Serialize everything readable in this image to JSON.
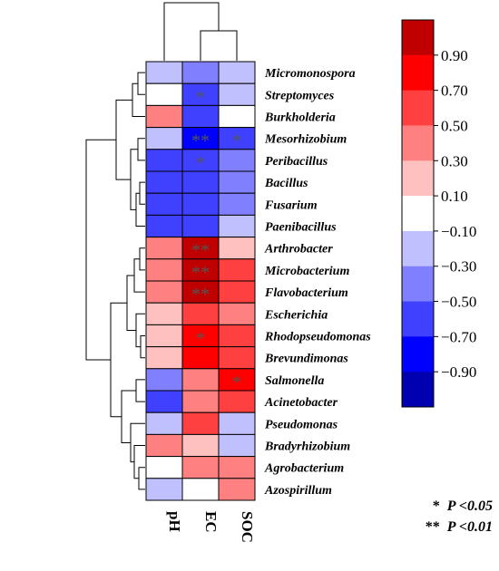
{
  "chart_data": {
    "type": "heatmap",
    "title": "",
    "columns": [
      "pH",
      "EC",
      "SOC"
    ],
    "rows": [
      "Micromonospora",
      "Streptomyces",
      "Burkholderia",
      "Mesorhizobium",
      "Peribacillus",
      "Bacillus",
      "Fusarium",
      "Paenibacillus",
      "Arthrobacter",
      "Microbacterium",
      "Flavobacterium",
      "Escherichia",
      "Rhodopseudomonas",
      "Brevundimonas",
      "Salmonella",
      "Acinetobacter",
      "Pseudomonas",
      "Bradyrhizobium",
      "Agrobacterium",
      "Azospirillum"
    ],
    "values": [
      [
        -0.3,
        -0.5,
        -0.2
      ],
      [
        -0.1,
        -0.7,
        -0.2
      ],
      [
        0.3,
        -0.6,
        -0.05
      ],
      [
        -0.3,
        -0.9,
        -0.6
      ],
      [
        -0.6,
        -0.7,
        -0.5
      ],
      [
        -0.7,
        -0.6,
        -0.4
      ],
      [
        -0.7,
        -0.6,
        -0.4
      ],
      [
        -0.6,
        -0.6,
        -0.3
      ],
      [
        0.3,
        0.9,
        0.2
      ],
      [
        0.3,
        0.9,
        0.6
      ],
      [
        0.4,
        0.9,
        0.5
      ],
      [
        0.1,
        0.6,
        0.4
      ],
      [
        0.1,
        0.7,
        0.6
      ],
      [
        0.1,
        0.7,
        0.6
      ],
      [
        -0.4,
        0.3,
        0.8
      ],
      [
        -0.6,
        0.4,
        0.5
      ],
      [
        -0.2,
        0.5,
        -0.3
      ],
      [
        0.3,
        0.1,
        -0.2
      ],
      [
        -0.1,
        0.3,
        0.3
      ],
      [
        -0.2,
        -0.1,
        0.3
      ]
    ],
    "significance": [
      [
        "",
        "",
        ""
      ],
      [
        "",
        "*",
        ""
      ],
      [
        "",
        "",
        ""
      ],
      [
        "",
        "**",
        "*"
      ],
      [
        "",
        "*",
        ""
      ],
      [
        "",
        "",
        ""
      ],
      [
        "",
        "",
        ""
      ],
      [
        "",
        "",
        ""
      ],
      [
        "",
        "**",
        ""
      ],
      [
        "",
        "**",
        ""
      ],
      [
        "",
        "**",
        ""
      ],
      [
        "",
        "",
        ""
      ],
      [
        "",
        "*",
        ""
      ],
      [
        "",
        "",
        ""
      ],
      [
        "",
        "",
        "*"
      ],
      [
        "",
        "",
        ""
      ],
      [
        "",
        "",
        ""
      ],
      [
        "",
        "",
        ""
      ],
      [
        "",
        "",
        ""
      ],
      [
        "",
        "",
        ""
      ]
    ],
    "colorbar": {
      "ticks": [
        "0.90",
        "0.70",
        "0.50",
        "0.30",
        "0.10",
        "−0.10",
        "−0.30",
        "−0.50",
        "−0.70",
        "−0.90"
      ],
      "range": [
        -1.0,
        1.0
      ],
      "colors": [
        "#c00000",
        "#ff0000",
        "#ff4040",
        "#ff8080",
        "#ffc0c0",
        "#ffffff",
        "#c0c0ff",
        "#8080ff",
        "#4040ff",
        "#0000ff",
        "#0000b0"
      ]
    },
    "legend_notes": [
      {
        "stars": "*",
        "label": "P <0.05"
      },
      {
        "stars": "**",
        "label": "P <0.01"
      }
    ]
  }
}
